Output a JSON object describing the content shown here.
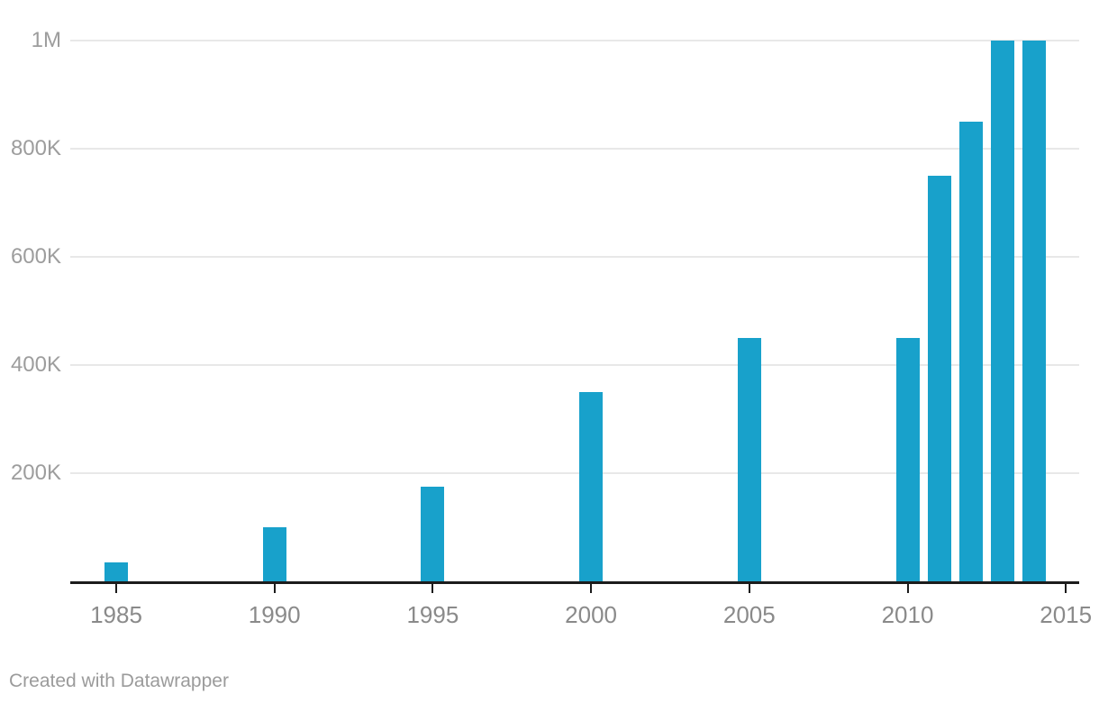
{
  "footer": {
    "credit": "Created with Datawrapper"
  },
  "colors": {
    "background": "#ffffff",
    "bar": "#18a1cb",
    "gridline": "#e8e8e8",
    "axis": "#1c1c1c",
    "tick": "#1c1c1c",
    "y_label": "#9d9d9d",
    "x_label": "#8a8a8a",
    "footer_text": "#9b9b9b"
  },
  "chart_data": {
    "type": "bar",
    "title": "",
    "xlabel": "",
    "ylabel": "",
    "x": [
      1985,
      1990,
      1995,
      2000,
      2005,
      2010,
      2011,
      2012,
      2013,
      2014
    ],
    "values": [
      35000,
      100000,
      175000,
      350000,
      450000,
      450000,
      750000,
      850000,
      1000000,
      1000000
    ],
    "ylim": [
      0,
      1000000
    ],
    "xlim": [
      1983.5,
      2015.5
    ],
    "grid": true,
    "legend": false,
    "y_ticks": [
      {
        "value": 200000,
        "label": "200K"
      },
      {
        "value": 400000,
        "label": "400K"
      },
      {
        "value": 600000,
        "label": "600K"
      },
      {
        "value": 800000,
        "label": "800K"
      },
      {
        "value": 1000000,
        "label": "1M"
      }
    ],
    "x_ticks": [
      {
        "value": 1985,
        "label": "1985"
      },
      {
        "value": 1990,
        "label": "1990"
      },
      {
        "value": 1995,
        "label": "1995"
      },
      {
        "value": 2000,
        "label": "2000"
      },
      {
        "value": 2005,
        "label": "2005"
      },
      {
        "value": 2010,
        "label": "2010"
      },
      {
        "value": 2015,
        "label": "2015"
      }
    ]
  }
}
